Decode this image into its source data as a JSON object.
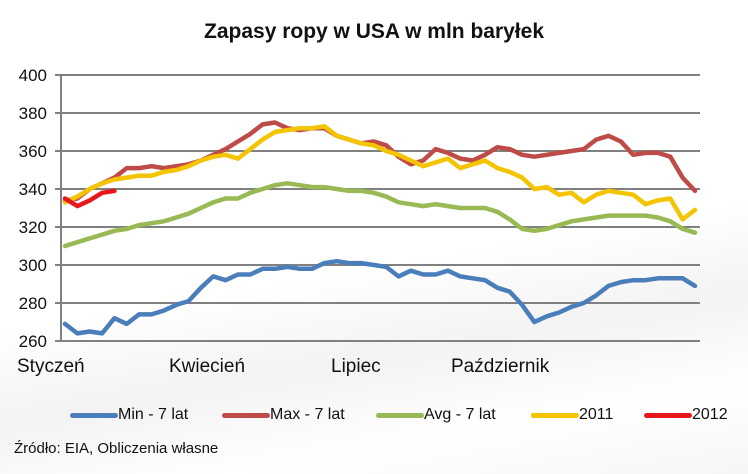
{
  "title": "Zapasy ropy w USA w mln baryłek",
  "source": "Źródło: EIA, Obliczenia własne",
  "colors": {
    "min": "#4a7ebb",
    "max": "#be4b48",
    "avg": "#98b954",
    "y2011": "#f5c400",
    "y2012": "#e8171b",
    "grid": "#808080"
  },
  "chart_data": {
    "type": "line",
    "title": "Zapasy ropy w USA w mln baryłek",
    "xlabel": "",
    "ylabel": "",
    "ylim": [
      260,
      400
    ],
    "yticks": [
      260,
      280,
      300,
      320,
      340,
      360,
      380,
      400
    ],
    "grid": true,
    "legend_position": "bottom",
    "x_tick_labels": [
      "Styczeń",
      "Kwiecień",
      "Lipiec",
      "Październik"
    ],
    "x": "week 1..52",
    "series": [
      {
        "name": "Min - 7 lat",
        "color": "#4a7ebb",
        "values": [
          269,
          264,
          265,
          264,
          272,
          269,
          274,
          274,
          276,
          279,
          281,
          288,
          294,
          292,
          295,
          295,
          298,
          298,
          299,
          298,
          298,
          301,
          302,
          301,
          301,
          300,
          299,
          294,
          297,
          295,
          295,
          297,
          294,
          293,
          292,
          288,
          286,
          279,
          270,
          273,
          275,
          278,
          280,
          284,
          289,
          291,
          292,
          292,
          293,
          293,
          293,
          289
        ]
      },
      {
        "name": "Max - 7 lat",
        "color": "#be4b48",
        "values": [
          334,
          335,
          340,
          343,
          346,
          351,
          351,
          352,
          351,
          352,
          353,
          355,
          358,
          361,
          365,
          369,
          374,
          375,
          372,
          371,
          372,
          372,
          368,
          366,
          364,
          365,
          363,
          357,
          353,
          355,
          361,
          359,
          356,
          355,
          358,
          362,
          361,
          358,
          357,
          358,
          359,
          360,
          361,
          366,
          368,
          365,
          358,
          359,
          359,
          357,
          346,
          339
        ]
      },
      {
        "name": "Avg - 7 lat",
        "color": "#98b954",
        "values": [
          310,
          312,
          314,
          316,
          318,
          319,
          321,
          322,
          323,
          325,
          327,
          330,
          333,
          335,
          335,
          338,
          340,
          342,
          343,
          342,
          341,
          341,
          340,
          339,
          339,
          338,
          336,
          333,
          332,
          331,
          332,
          331,
          330,
          330,
          330,
          328,
          324,
          319,
          318,
          319,
          321,
          323,
          324,
          325,
          326,
          326,
          326,
          326,
          325,
          323,
          319,
          317
        ]
      },
      {
        "name": "2011",
        "color": "#f5c400",
        "values": [
          333,
          336,
          340,
          343,
          345,
          346,
          347,
          347,
          349,
          350,
          352,
          355,
          357,
          358,
          356,
          361,
          366,
          370,
          371,
          372,
          372,
          373,
          368,
          366,
          364,
          363,
          360,
          358,
          355,
          352,
          354,
          356,
          351,
          353,
          355,
          351,
          349,
          346,
          340,
          341,
          337,
          338,
          333,
          337,
          339,
          338,
          337,
          332,
          334,
          335,
          324,
          329
        ]
      },
      {
        "name": "2012",
        "color": "#e8171b",
        "values": [
          335,
          331,
          334,
          338,
          339
        ]
      }
    ]
  }
}
